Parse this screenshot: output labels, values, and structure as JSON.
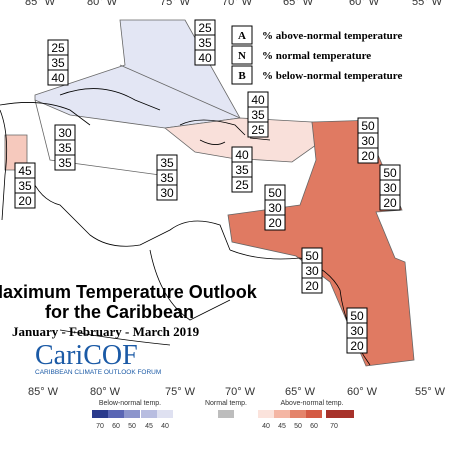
{
  "longitudes_top": [
    "85° W",
    "80° W",
    "75° W",
    "70° W",
    "65° W",
    "60° W",
    "55° W"
  ],
  "longitudes_bottom": [
    "85° W",
    "80° W",
    "75° W",
    "70° W",
    "65° W",
    "60° W",
    "55° W"
  ],
  "legend": [
    {
      "key": "A",
      "text": "% above-normal temperature"
    },
    {
      "key": "N",
      "text": "% normal temperature"
    },
    {
      "key": "B",
      "text": "% below-normal temperature"
    }
  ],
  "title": {
    "line1": "Maximum Temperature Outlook",
    "line2": "for the Caribbean",
    "period": "January - February - March 2019",
    "logo": "CariCOF",
    "logo_subtitle": "CARIBBEAN CLIMATE OUTLOOK FORUM"
  },
  "forecast_boxes": [
    [
      25,
      35,
      40
    ],
    [
      25,
      35,
      40
    ],
    [
      40,
      35,
      25
    ],
    [
      50,
      30,
      20
    ],
    [
      30,
      35,
      35
    ],
    [
      35,
      35,
      30
    ],
    [
      40,
      35,
      25
    ],
    [
      45,
      35,
      20
    ],
    [
      50,
      30,
      20
    ],
    [
      50,
      30,
      20
    ],
    [
      50,
      30,
      20
    ],
    [
      50,
      30,
      20
    ]
  ],
  "colorbar": {
    "below_label": "Below-normal temp.",
    "below_ticks": [
      70,
      60,
      50,
      45,
      40
    ],
    "normal_label": "Normal temp.",
    "above_label": "Above-normal temp.",
    "above_ticks": [
      40,
      45,
      50,
      60,
      70
    ]
  }
}
